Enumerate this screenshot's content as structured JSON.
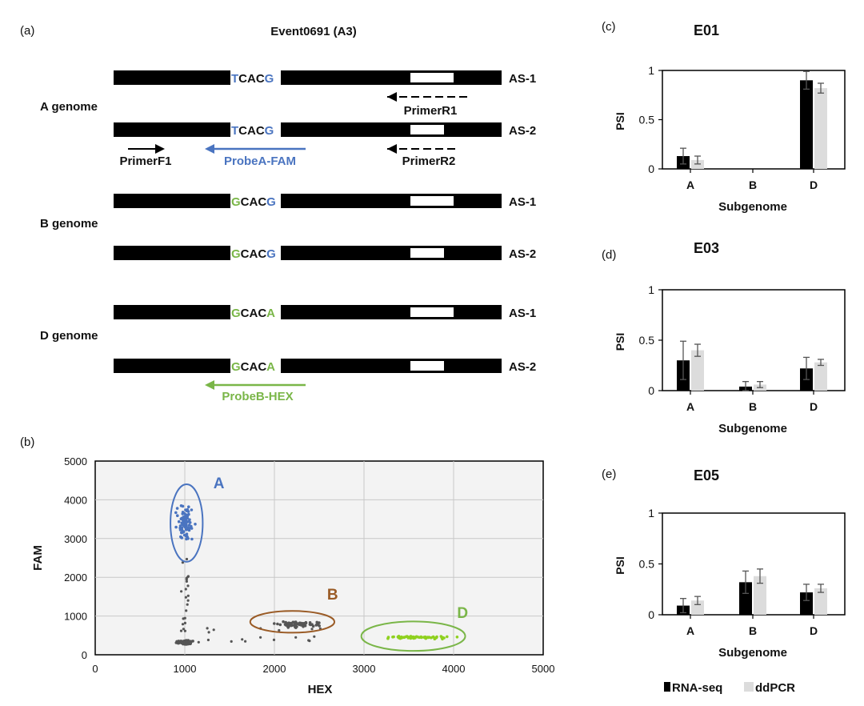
{
  "colors": {
    "blue": "#4a74c0",
    "green": "#7ab648",
    "brown": "#9a5b26",
    "lime": "#8fd11f",
    "gray_dots": "#555555",
    "rna": "#000000",
    "ddpcr": "#dcdcdc",
    "plot_bg": "#f3f3f3"
  },
  "panel_a": {
    "label": "(a)",
    "title": "Event0691 (A3)",
    "genomes": [
      {
        "name": "A genome",
        "rows": [
          {
            "prefix": "T",
            "prefix_color": "blue",
            "mid": "CAC",
            "suffix": "G",
            "suffix_color": "blue",
            "tag": "AS-1",
            "white_box": "long"
          },
          {
            "prefix": "T",
            "prefix_color": "blue",
            "mid": "CAC",
            "suffix": "G",
            "suffix_color": "blue",
            "tag": "AS-2",
            "white_box": "short"
          }
        ]
      },
      {
        "name": "B genome",
        "rows": [
          {
            "prefix": "G",
            "prefix_color": "green",
            "mid": "CAC",
            "suffix": "G",
            "suffix_color": "blue",
            "tag": "AS-1",
            "white_box": "long"
          },
          {
            "prefix": "G",
            "prefix_color": "green",
            "mid": "CAC",
            "suffix": "G",
            "suffix_color": "blue",
            "tag": "AS-2",
            "white_box": "short"
          }
        ]
      },
      {
        "name": "D genome",
        "rows": [
          {
            "prefix": "G",
            "prefix_color": "green",
            "mid": "CAC",
            "suffix": "A",
            "suffix_color": "green",
            "tag": "AS-1",
            "white_box": "long"
          },
          {
            "prefix": "G",
            "prefix_color": "green",
            "mid": "CAC",
            "suffix": "A",
            "suffix_color": "green",
            "tag": "AS-2",
            "white_box": "short"
          }
        ]
      }
    ],
    "primers": {
      "primer_r1": "PrimerR1",
      "primer_r2": "PrimerR2",
      "primer_f1": "PrimerF1",
      "probe_a": "ProbeA-FAM",
      "probe_b": "ProbeB-HEX"
    }
  },
  "chart_data": [
    {
      "panel": "(b)",
      "type": "scatter",
      "title": "",
      "xlabel": "HEX",
      "ylabel": "FAM",
      "xlim": [
        0,
        5000
      ],
      "ylim": [
        0,
        5000
      ],
      "xticks": [
        "0",
        "1000",
        "2000",
        "3000",
        "4000",
        "5000"
      ],
      "yticks": [
        "0",
        "1000",
        "2000",
        "3000",
        "4000",
        "5000"
      ],
      "clusters": [
        {
          "name": "A",
          "color": "blue",
          "center": [
            1000,
            3400
          ],
          "spread": [
            130,
            600
          ],
          "count": 90
        },
        {
          "name": "B",
          "color": "gray_dots",
          "center": [
            2250,
            790
          ],
          "spread": [
            330,
            80
          ],
          "count": 70
        },
        {
          "name": "D",
          "color": "lime",
          "center": [
            3600,
            450
          ],
          "spread": [
            560,
            50
          ],
          "count": 70
        },
        {
          "name": "negative",
          "color": "gray_dots",
          "center": [
            1000,
            320
          ],
          "spread": [
            110,
            70
          ],
          "count": 120
        }
      ],
      "ellipses": [
        {
          "name": "A",
          "label": "A",
          "color": "blue",
          "center": [
            1020,
            3400
          ],
          "radius": [
            180,
            1000
          ],
          "label_pos": [
            1380,
            4300
          ]
        },
        {
          "name": "B",
          "label": "B",
          "color": "brown",
          "center": [
            2200,
            850
          ],
          "radius": [
            470,
            280
          ],
          "label_pos": [
            2650,
            1430
          ]
        },
        {
          "name": "D",
          "label": "D",
          "color": "green",
          "center": [
            3550,
            480
          ],
          "radius": [
            580,
            380
          ],
          "label_pos": [
            4100,
            950
          ]
        }
      ]
    },
    {
      "panel": "(c)",
      "type": "bar",
      "title": "E01",
      "xlabel": "Subgenome",
      "ylabel": "PSI",
      "categories": [
        "A",
        "B",
        "D"
      ],
      "ylim": [
        0,
        1
      ],
      "yticks": [
        "0",
        "0.5",
        "1"
      ],
      "series": [
        {
          "name": "RNA-seq",
          "color": "rna",
          "values": [
            0.13,
            null,
            0.9
          ],
          "errors": [
            0.08,
            null,
            0.09
          ]
        },
        {
          "name": "ddPCR",
          "color": "ddpcr",
          "values": [
            0.09,
            null,
            0.82
          ],
          "errors": [
            0.04,
            null,
            0.05
          ]
        }
      ]
    },
    {
      "panel": "(d)",
      "type": "bar",
      "title": "E03",
      "xlabel": "Subgenome",
      "ylabel": "PSI",
      "categories": [
        "A",
        "B",
        "D"
      ],
      "ylim": [
        0,
        1
      ],
      "yticks": [
        "0",
        "0.5",
        "1"
      ],
      "series": [
        {
          "name": "RNA-seq",
          "color": "rna",
          "values": [
            0.3,
            0.04,
            0.22
          ],
          "errors": [
            0.19,
            0.05,
            0.11
          ]
        },
        {
          "name": "ddPCR",
          "color": "ddpcr",
          "values": [
            0.4,
            0.06,
            0.28
          ],
          "errors": [
            0.06,
            0.03,
            0.03
          ]
        }
      ]
    },
    {
      "panel": "(e)",
      "type": "bar",
      "title": "E05",
      "xlabel": "Subgenome",
      "ylabel": "PSI",
      "categories": [
        "A",
        "B",
        "D"
      ],
      "ylim": [
        0,
        1
      ],
      "yticks": [
        "0",
        "0.5",
        "1"
      ],
      "series": [
        {
          "name": "RNA-seq",
          "color": "rna",
          "values": [
            0.09,
            0.32,
            0.22
          ],
          "errors": [
            0.07,
            0.11,
            0.08
          ]
        },
        {
          "name": "ddPCR",
          "color": "ddpcr",
          "values": [
            0.14,
            0.38,
            0.26
          ],
          "errors": [
            0.04,
            0.07,
            0.04
          ]
        }
      ]
    }
  ],
  "legend": {
    "items": [
      {
        "label": "RNA-seq",
        "color": "rna"
      },
      {
        "label": "ddPCR",
        "color": "ddpcr"
      }
    ]
  }
}
